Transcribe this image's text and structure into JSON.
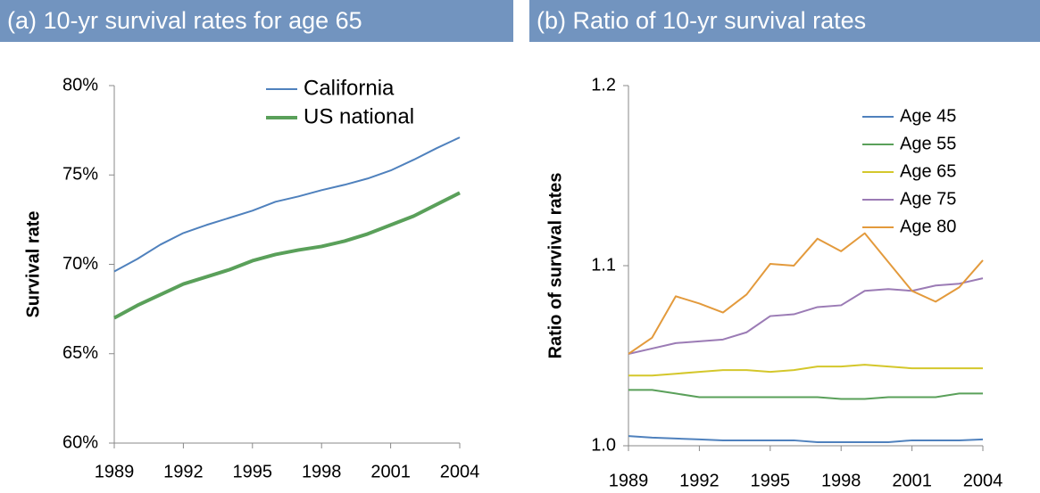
{
  "chart_data": [
    {
      "type": "line",
      "title": "(a) 10-yr survival rates for age 65",
      "y_label": "Survival rate",
      "x": [
        1989,
        1990,
        1991,
        1992,
        1993,
        1994,
        1995,
        1996,
        1997,
        1998,
        1999,
        2000,
        2001,
        2002,
        2003,
        2004
      ],
      "xlim": [
        1989,
        2004
      ],
      "xticks": [
        1989,
        1992,
        1995,
        1998,
        2001,
        2004
      ],
      "ylim": [
        60,
        80
      ],
      "yticks": [
        {
          "value": 60,
          "label": "60%"
        },
        {
          "value": 65,
          "label": "65%"
        },
        {
          "value": 70,
          "label": "70%"
        },
        {
          "value": 75,
          "label": "75%"
        },
        {
          "value": 80,
          "label": "80%"
        }
      ],
      "series": [
        {
          "name": "California",
          "color": "#4f81bd",
          "values": [
            69.6,
            70.3,
            71.1,
            71.75,
            72.2,
            72.6,
            73.0,
            73.5,
            73.8,
            74.15,
            74.45,
            74.8,
            75.25,
            75.85,
            76.5,
            77.1
          ]
        },
        {
          "name": "US national",
          "color": "#5aa05a",
          "values": [
            67.0,
            67.7,
            68.3,
            68.9,
            69.3,
            69.7,
            70.2,
            70.55,
            70.8,
            71.0,
            71.3,
            71.7,
            72.2,
            72.7,
            73.35,
            74.0
          ]
        }
      ]
    },
    {
      "type": "line",
      "title": "(b) Ratio of 10-yr survival rates",
      "y_label": "Ratio of survival rates",
      "x": [
        1989,
        1990,
        1991,
        1992,
        1993,
        1994,
        1995,
        1996,
        1997,
        1998,
        1999,
        2000,
        2001,
        2002,
        2003,
        2004
      ],
      "xlim": [
        1989,
        2004
      ],
      "xticks": [
        1989,
        1992,
        1995,
        1998,
        2001,
        2004
      ],
      "ylim": [
        1,
        1.2
      ],
      "yticks": [
        {
          "value": 1,
          "label": "1.0"
        },
        1.1,
        1.2
      ],
      "series": [
        {
          "name": "Age 45",
          "color": "#4f81bd",
          "values": [
            1.0054,
            1.0045,
            1.004,
            1.0035,
            1.003,
            1.003,
            1.003,
            1.003,
            1.002,
            1.002,
            1.002,
            1.002,
            1.003,
            1.003,
            1.003,
            1.0035
          ]
        },
        {
          "name": "Age 55",
          "color": "#5aa05a",
          "values": [
            1.031,
            1.031,
            1.029,
            1.027,
            1.027,
            1.027,
            1.027,
            1.027,
            1.027,
            1.026,
            1.026,
            1.027,
            1.027,
            1.027,
            1.029,
            1.029
          ]
        },
        {
          "name": "Age 65",
          "color": "#d4c72b",
          "values": [
            1.039,
            1.039,
            1.04,
            1.041,
            1.042,
            1.042,
            1.041,
            1.042,
            1.044,
            1.044,
            1.045,
            1.044,
            1.043,
            1.043,
            1.043,
            1.043
          ]
        },
        {
          "name": "Age 75",
          "color": "#9b7bb5",
          "values": [
            1.051,
            1.054,
            1.057,
            1.058,
            1.059,
            1.063,
            1.072,
            1.073,
            1.077,
            1.078,
            1.086,
            1.087,
            1.086,
            1.089,
            1.09,
            1.093
          ]
        },
        {
          "name": "Age 80",
          "color": "#e39a3c",
          "values": [
            1.051,
            1.06,
            1.083,
            1.079,
            1.074,
            1.084,
            1.101,
            1.1,
            1.115,
            1.108,
            1.118,
            1.102,
            1.086,
            1.08,
            1.088,
            1.103
          ]
        }
      ]
    }
  ]
}
